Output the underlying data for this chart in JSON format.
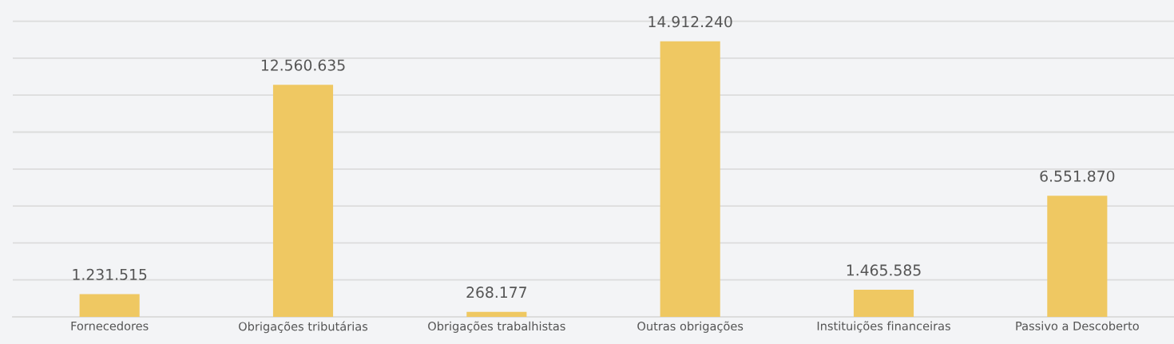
{
  "chart_data": {
    "type": "bar",
    "categories": [
      "Fornecedores",
      "Obrigações tributárias",
      "Obrigações trabalhistas",
      "Outras obrigações",
      "Instituições financeiras",
      "Passivo a Descoberto"
    ],
    "values": [
      1231515,
      12560635,
      268177,
      14912240,
      1465585,
      6551870
    ],
    "value_labels": [
      "1.231.515",
      "12.560.635",
      "268.177",
      "14.912.240",
      "1.465.585",
      "6.551.870"
    ],
    "color": "#efc862",
    "ylim": [
      0,
      17150000
    ],
    "yticks": [
      {
        "value": 0,
        "label": null
      },
      {
        "value": 2000000,
        "label": null
      },
      {
        "value": 4000000,
        "label": null
      },
      {
        "value": 6000000,
        "label": null
      },
      {
        "value": 8000000,
        "label": null
      },
      {
        "value": 10000000,
        "label": null
      },
      {
        "value": 12000000,
        "label": null
      },
      {
        "value": 14000000,
        "label": null
      },
      {
        "value": 16000000,
        "label": null
      }
    ],
    "tick_labels": "x",
    "grid": "y",
    "legend": false
  }
}
